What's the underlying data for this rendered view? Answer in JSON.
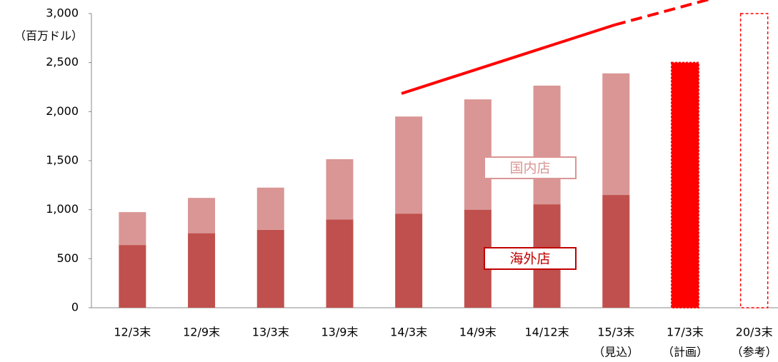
{
  "chart_data": {
    "type": "bar",
    "stacked": true,
    "y_label": "（百万ドル）",
    "categories": [
      "12/3末",
      "12/9末",
      "13/3末",
      "13/9末",
      "14/3末",
      "14/9末",
      "14/12末",
      "15/3末",
      "17/3末",
      "20/3末"
    ],
    "category_sublabels": [
      null,
      null,
      null,
      null,
      null,
      null,
      null,
      "（見込）",
      "（計画）",
      "（参考）"
    ],
    "series": [
      {
        "name": "海外店",
        "color": "#c0504d",
        "label_color": "#c00000",
        "values": [
          640,
          760,
          795,
          900,
          960,
          1000,
          1055,
          1150,
          null,
          null
        ]
      },
      {
        "name": "国内店",
        "color": "#d99694",
        "label_color": "#d99694",
        "values": [
          335,
          360,
          430,
          615,
          990,
          1125,
          1210,
          1240,
          null,
          null
        ]
      }
    ],
    "plan_values": [
      null,
      null,
      null,
      null,
      null,
      null,
      null,
      null,
      2500,
      3000
    ],
    "plan_styles": [
      null,
      null,
      null,
      null,
      null,
      null,
      null,
      null,
      "solid",
      "dashed"
    ],
    "plan_color": "#ff0000",
    "ylim": [
      0,
      3000
    ],
    "yticks": [
      0,
      500,
      {
        "value": 1000,
        "label": "1,000"
      },
      {
        "value": 1500,
        "label": "1,500"
      },
      {
        "value": 2000,
        "label": "2,000"
      },
      {
        "value": 2500,
        "label": "2,500"
      },
      {
        "value": 3000,
        "label": "3,000"
      }
    ]
  }
}
